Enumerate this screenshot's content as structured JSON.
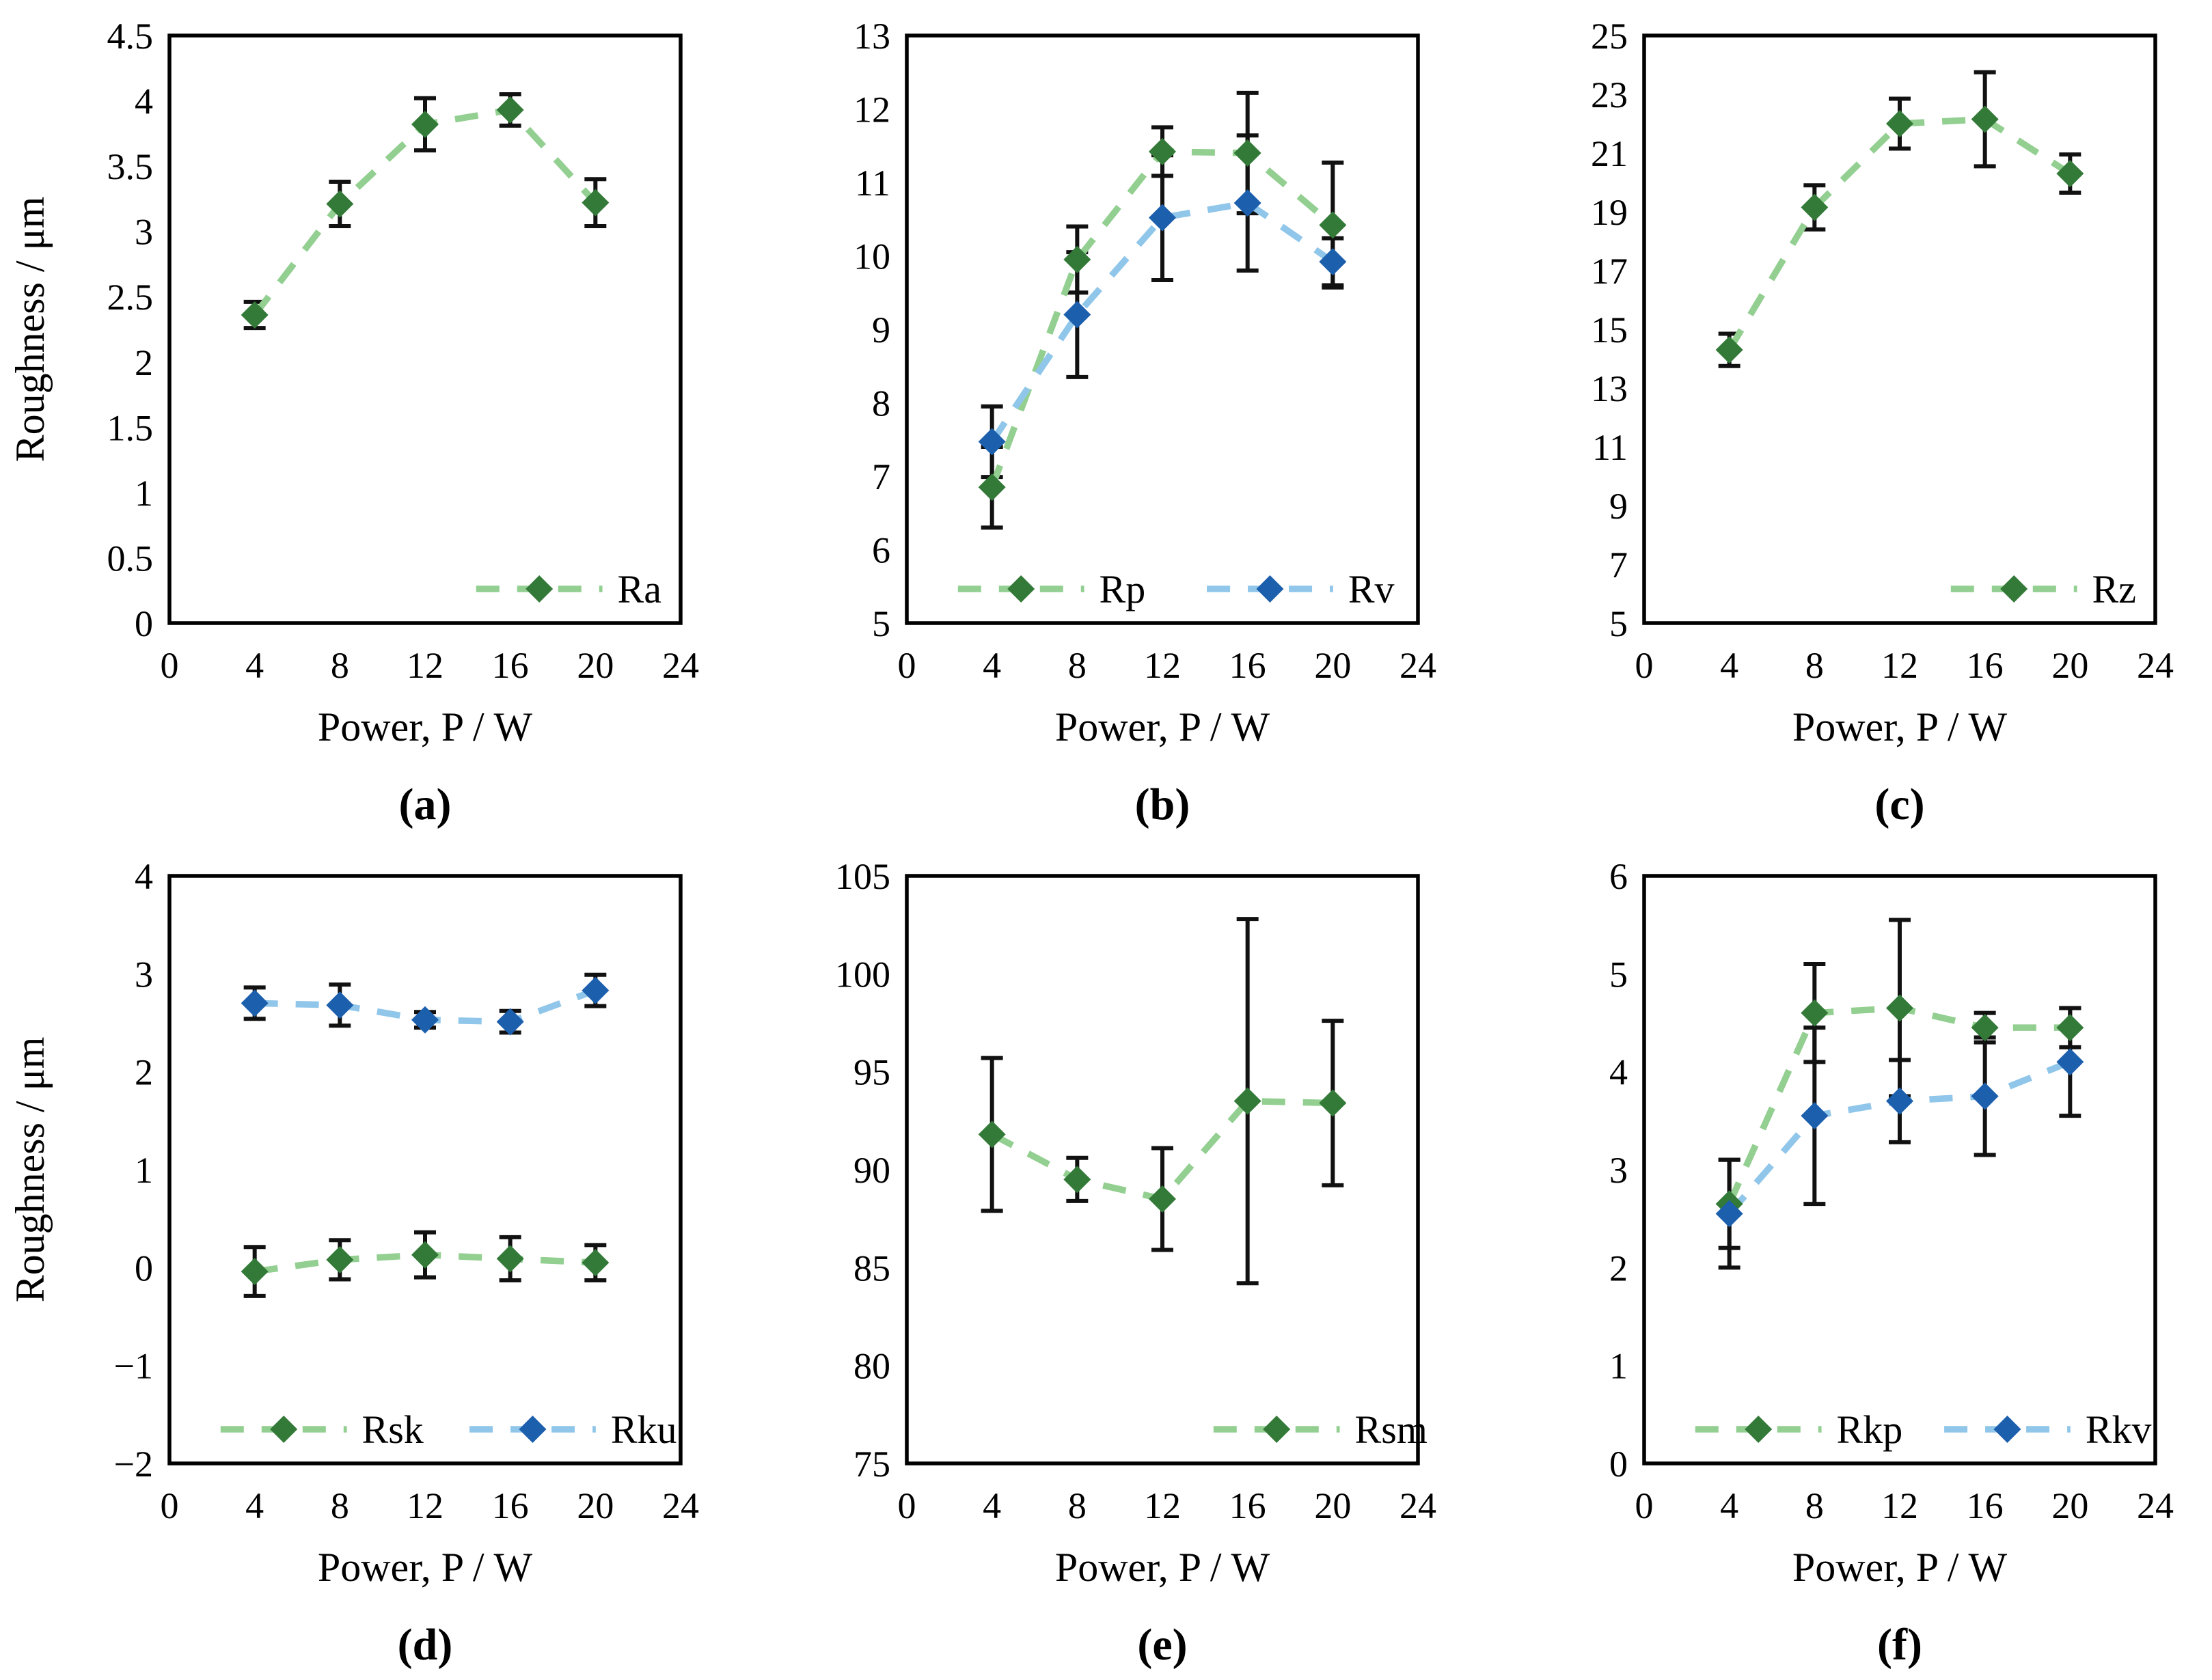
{
  "figure_title": "",
  "colors": {
    "green_marker": "#337a38",
    "green_line": "#92cf90",
    "blue_marker": "#1c5fad",
    "blue_line": "#90c6ea",
    "error_bar": "#111111",
    "axis": "#000000",
    "background": "#ffffff"
  },
  "chart_data": [
    {
      "id": "a",
      "type": "line",
      "caption": "(a)",
      "xlabel": "Power, P / W",
      "ylabel": "Roughness / μm",
      "x": [
        4,
        8,
        12,
        16,
        20
      ],
      "xlim": [
        0,
        24
      ],
      "xticks": [
        0,
        4,
        8,
        12,
        16,
        20,
        24
      ],
      "ylim": [
        0,
        4.5
      ],
      "yticks": [
        0,
        0.5,
        1,
        1.5,
        2,
        2.5,
        3,
        3.5,
        4,
        4.5
      ],
      "ytick_labels": [
        "0",
        "0.5",
        "1",
        "1.5",
        "2",
        "2.5",
        "3",
        "3.5",
        "4",
        "4.5"
      ],
      "grid": false,
      "legend_position": "bottom-right",
      "series": [
        {
          "name": "Ra",
          "marker_color": "#337a38",
          "line_color": "#92cf90",
          "values": [
            2.36,
            3.21,
            3.82,
            3.93,
            3.22
          ],
          "errors": [
            0.1,
            0.17,
            0.2,
            0.12,
            0.18
          ]
        }
      ]
    },
    {
      "id": "b",
      "type": "line",
      "caption": "(b)",
      "xlabel": "Power, P / W",
      "ylabel": "",
      "x": [
        4,
        8,
        12,
        16,
        20
      ],
      "xlim": [
        0,
        24
      ],
      "xticks": [
        0,
        4,
        8,
        12,
        16,
        20,
        24
      ],
      "ylim": [
        5,
        13
      ],
      "yticks": [
        5,
        6,
        7,
        8,
        9,
        10,
        11,
        12,
        13
      ],
      "ytick_labels": [
        "5",
        "6",
        "7",
        "8",
        "9",
        "10",
        "11",
        "12",
        "13"
      ],
      "grid": false,
      "legend_position": "bottom-spread",
      "series": [
        {
          "name": "Rp",
          "marker_color": "#337a38",
          "line_color": "#92cf90",
          "values": [
            6.85,
            9.95,
            11.42,
            11.4,
            10.42
          ],
          "errors": [
            0.55,
            0.45,
            0.33,
            0.82,
            0.85
          ]
        },
        {
          "name": "Rv",
          "marker_color": "#1c5fad",
          "line_color": "#90c6ea",
          "values": [
            7.47,
            9.2,
            10.52,
            10.72,
            9.92
          ],
          "errors": [
            0.48,
            0.85,
            0.85,
            0.92,
            0.32
          ]
        }
      ]
    },
    {
      "id": "c",
      "type": "line",
      "caption": "(c)",
      "xlabel": "Power, P / W",
      "ylabel": "",
      "x": [
        4,
        8,
        12,
        16,
        20
      ],
      "xlim": [
        0,
        24
      ],
      "xticks": [
        0,
        4,
        8,
        12,
        16,
        20,
        24
      ],
      "ylim": [
        5,
        25
      ],
      "yticks": [
        5,
        7,
        9,
        11,
        13,
        15,
        17,
        19,
        21,
        23,
        25
      ],
      "ytick_labels": [
        "5",
        "7",
        "9",
        "11",
        "13",
        "15",
        "17",
        "19",
        "21",
        "23",
        "25"
      ],
      "grid": false,
      "legend_position": "bottom-right",
      "series": [
        {
          "name": "Rz",
          "marker_color": "#337a38",
          "line_color": "#92cf90",
          "values": [
            14.3,
            19.15,
            22.0,
            22.15,
            20.3
          ],
          "errors": [
            0.55,
            0.75,
            0.85,
            1.6,
            0.65
          ]
        }
      ]
    },
    {
      "id": "d",
      "type": "line",
      "caption": "(d)",
      "xlabel": "Power, P / W",
      "ylabel": "Roughness / μm",
      "x": [
        4,
        8,
        12,
        16,
        20
      ],
      "xlim": [
        0,
        24
      ],
      "xticks": [
        0,
        4,
        8,
        12,
        16,
        20,
        24
      ],
      "ylim": [
        -2,
        4
      ],
      "yticks": [
        -2,
        -1,
        0,
        1,
        2,
        3,
        4
      ],
      "ytick_labels": [
        "−2",
        "−1",
        "0",
        "1",
        "2",
        "3",
        "4"
      ],
      "grid": false,
      "legend_position": "bottom-spread",
      "series": [
        {
          "name": "Rsk",
          "marker_color": "#337a38",
          "line_color": "#92cf90",
          "values": [
            -0.04,
            0.08,
            0.13,
            0.09,
            0.05
          ],
          "errors": [
            0.25,
            0.2,
            0.23,
            0.22,
            0.18
          ]
        },
        {
          "name": "Rku",
          "marker_color": "#1c5fad",
          "line_color": "#90c6ea",
          "values": [
            2.7,
            2.68,
            2.53,
            2.51,
            2.83
          ],
          "errors": [
            0.16,
            0.21,
            0.08,
            0.11,
            0.16
          ]
        }
      ]
    },
    {
      "id": "e",
      "type": "line",
      "caption": "(e)",
      "xlabel": "Power, P / W",
      "ylabel": "",
      "x": [
        4,
        8,
        12,
        16,
        20
      ],
      "xlim": [
        0,
        24
      ],
      "xticks": [
        0,
        4,
        8,
        12,
        16,
        20,
        24
      ],
      "ylim": [
        75,
        105
      ],
      "yticks": [
        75,
        80,
        85,
        90,
        95,
        100,
        105
      ],
      "ytick_labels": [
        "75",
        "80",
        "85",
        "90",
        "95",
        "100",
        "105"
      ],
      "grid": false,
      "legend_position": "bottom-right",
      "series": [
        {
          "name": "Rsm",
          "marker_color": "#337a38",
          "line_color": "#92cf90",
          "values": [
            91.8,
            89.5,
            88.5,
            93.5,
            93.4
          ],
          "errors": [
            3.9,
            1.1,
            2.6,
            9.3,
            4.2
          ]
        }
      ]
    },
    {
      "id": "f",
      "type": "line",
      "caption": "(f)",
      "xlabel": "Power, P / W",
      "ylabel": "",
      "x": [
        4,
        8,
        12,
        16,
        20
      ],
      "xlim": [
        0,
        24
      ],
      "xticks": [
        0,
        4,
        8,
        12,
        16,
        20,
        24
      ],
      "ylim": [
        0,
        6
      ],
      "yticks": [
        0,
        1,
        2,
        3,
        4,
        5,
        6
      ],
      "ytick_labels": [
        "0",
        "1",
        "2",
        "3",
        "4",
        "5",
        "6"
      ],
      "grid": false,
      "legend_position": "bottom-spread",
      "series": [
        {
          "name": "Rkp",
          "marker_color": "#337a38",
          "line_color": "#92cf90",
          "values": [
            2.65,
            4.6,
            4.65,
            4.45,
            4.45
          ],
          "errors": [
            0.45,
            0.5,
            0.9,
            0.15,
            0.2
          ]
        },
        {
          "name": "Rkv",
          "marker_color": "#1c5fad",
          "line_color": "#90c6ea",
          "values": [
            2.55,
            3.55,
            3.7,
            3.75,
            4.1
          ],
          "errors": [
            0.55,
            0.9,
            0.42,
            0.6,
            0.55
          ]
        }
      ]
    }
  ]
}
